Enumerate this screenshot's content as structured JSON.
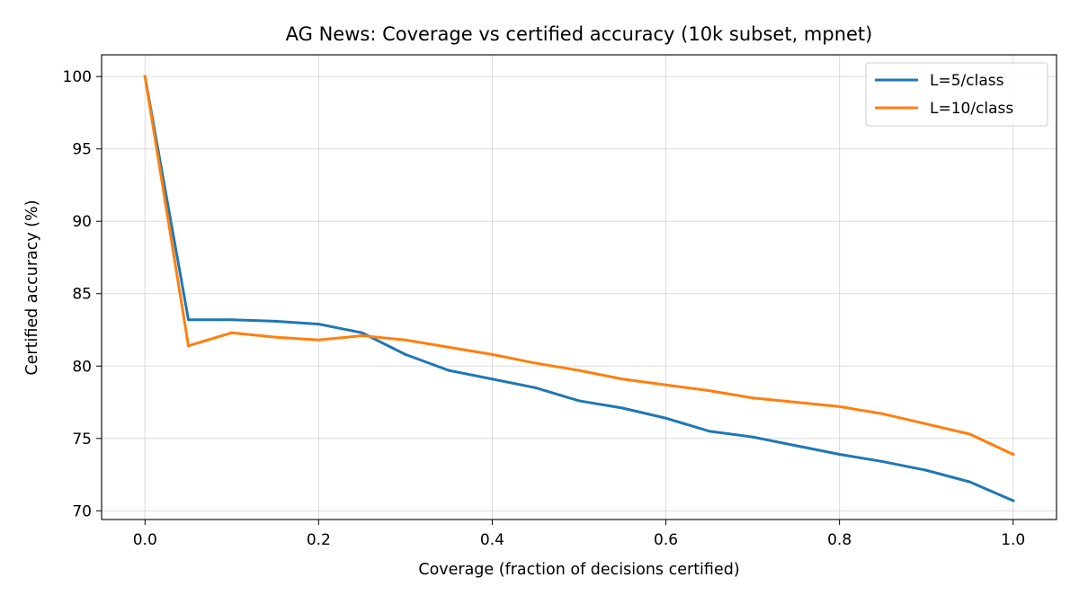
{
  "chart_data": {
    "type": "line",
    "title": "AG News: Coverage vs certified accuracy (10k subset, mpnet)",
    "xlabel": "Coverage (fraction of decisions certified)",
    "ylabel": "Certified accuracy (%)",
    "xlim": [
      -0.05,
      1.05
    ],
    "ylim": [
      69.4,
      101.5
    ],
    "xticks": [
      0.0,
      0.2,
      0.4,
      0.6,
      0.8,
      1.0
    ],
    "xtick_labels": [
      "0.0",
      "0.2",
      "0.4",
      "0.6",
      "0.8",
      "1.0"
    ],
    "yticks": [
      70,
      75,
      80,
      85,
      90,
      95,
      100
    ],
    "ytick_labels": [
      "70",
      "75",
      "80",
      "85",
      "90",
      "95",
      "100"
    ],
    "grid": true,
    "legend_position": "top-right",
    "x": [
      0.0,
      0.05,
      0.1,
      0.15,
      0.2,
      0.25,
      0.3,
      0.35,
      0.4,
      0.45,
      0.5,
      0.55,
      0.6,
      0.65,
      0.7,
      0.75,
      0.8,
      0.85,
      0.9,
      0.95,
      1.0
    ],
    "series": [
      {
        "name": "L=5/class",
        "color": "#1f77b4",
        "values": [
          100.0,
          83.2,
          83.2,
          83.1,
          82.9,
          82.3,
          80.8,
          79.7,
          79.1,
          78.5,
          77.6,
          77.1,
          76.4,
          75.5,
          75.1,
          74.5,
          73.9,
          73.4,
          72.8,
          72.0,
          70.7
        ]
      },
      {
        "name": "L=10/class",
        "color": "#ff7f0e",
        "values": [
          100.0,
          81.4,
          82.3,
          82.0,
          81.8,
          82.1,
          81.8,
          81.3,
          80.8,
          80.2,
          79.7,
          79.1,
          78.7,
          78.3,
          77.8,
          77.5,
          77.2,
          76.7,
          76.0,
          75.3,
          73.9
        ]
      }
    ]
  }
}
